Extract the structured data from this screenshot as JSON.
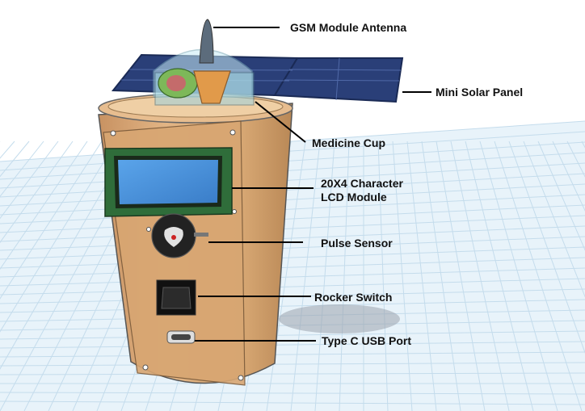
{
  "labels": {
    "antenna": "GSM Module Antenna",
    "solar": "Mini Solar Panel",
    "cup": "Medicine Cup",
    "lcd_line1": "20X4 Character",
    "lcd_line2": "LCD Module",
    "pulse": "Pulse Sensor",
    "rocker": "Rocker Switch",
    "usb": "Type C USB Port"
  },
  "colors": {
    "body": "#d9aa78",
    "body_shadow": "#b98856",
    "lcd_bezel": "#2f6d3a",
    "lcd_screen": "#4a8fd9",
    "solar": "#2a3f78",
    "grid_line": "#c4dcec",
    "dome": "#c8ecf6"
  }
}
